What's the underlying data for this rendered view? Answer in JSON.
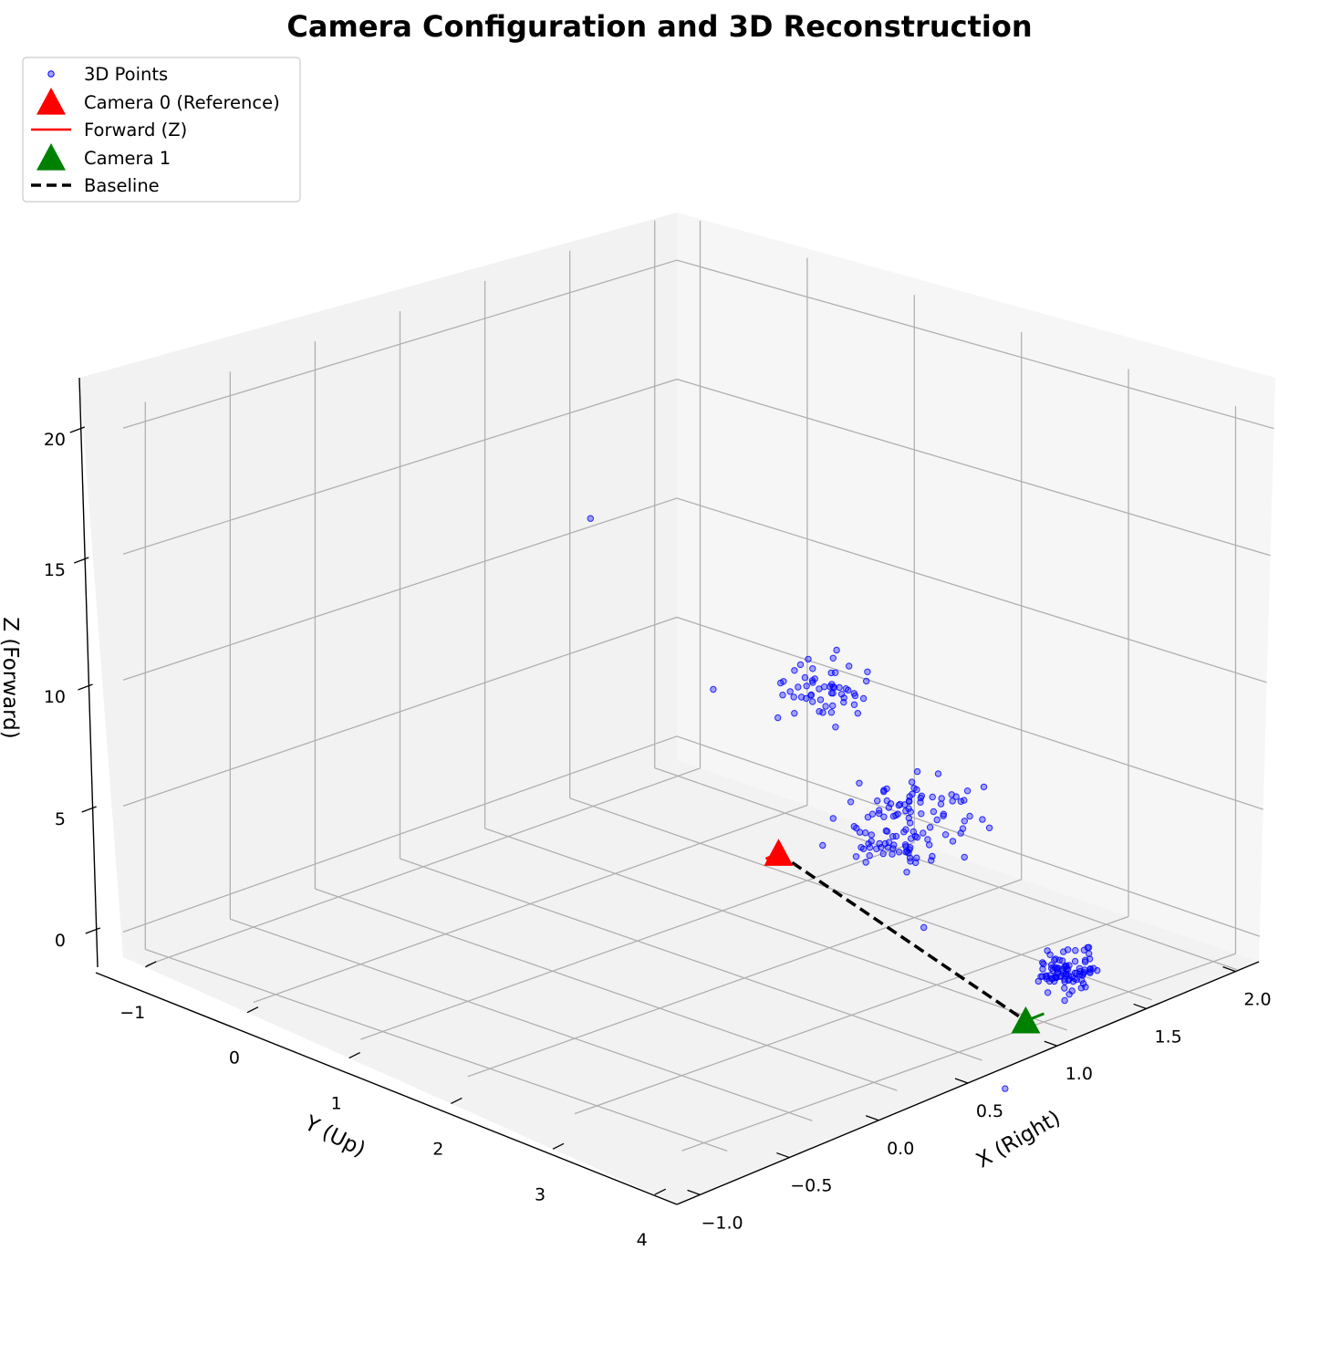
{
  "chart_data": {
    "type": "scatter",
    "title": "Camera Configuration and 3D Reconstruction",
    "xlabel": "X (Right)",
    "ylabel": "Y (Up)",
    "zlabel": "Z (Forward)",
    "xlim": [
      -1.2,
      2.0
    ],
    "ylim": [
      -1.2,
      4.5
    ],
    "zlim": [
      -1.0,
      22.0
    ],
    "x_ticks": [
      "−1.0",
      "−0.5",
      "0.0",
      "0.5",
      "1.0",
      "1.5",
      "2.0"
    ],
    "y_ticks": [
      "−1",
      "0",
      "1",
      "2",
      "3",
      "4"
    ],
    "z_ticks": [
      "0",
      "5",
      "10",
      "15",
      "20"
    ],
    "grid": true,
    "legend_position": "top-left",
    "legend": [
      {
        "label": "3D Points",
        "kind": "point",
        "color": "#0000ff"
      },
      {
        "label": "Camera 0 (Reference)",
        "kind": "triangle",
        "color": "#ff0000"
      },
      {
        "label": "Forward (Z)",
        "kind": "line",
        "color": "#ff0000"
      },
      {
        "label": "Camera 1",
        "kind": "triangle",
        "color": "#008000"
      },
      {
        "label": "Baseline",
        "kind": "dashed",
        "color": "#000000"
      }
    ],
    "cameras": [
      {
        "name": "Camera 0 (Reference)",
        "x": 0.0,
        "y": 0.0,
        "z": 0.0,
        "color": "#ff0000"
      },
      {
        "name": "Camera 1",
        "x": 2.0,
        "y": 1.2,
        "z": 0.0,
        "color": "#008000"
      }
    ],
    "baseline": {
      "from": [
        0.0,
        0.0,
        0.0
      ],
      "to": [
        2.0,
        1.2,
        0.0
      ]
    },
    "point_clusters": [
      {
        "label": "3D Points",
        "center": [
          1.9,
          0.6,
          1.0
        ],
        "spread": [
          0.1,
          0.25,
          0.6
        ],
        "count": 90
      },
      {
        "label": "3D Points",
        "center": [
          0.6,
          -0.3,
          2.8
        ],
        "spread": [
          0.25,
          0.45,
          1.2
        ],
        "count": 80
      },
      {
        "label": "3D Points",
        "center": [
          -0.2,
          -0.9,
          5.0
        ],
        "spread": [
          0.15,
          0.35,
          1.2
        ],
        "count": 55
      },
      {
        "label": "3D Points",
        "center": [
          0.5,
          -0.2,
          1.4
        ],
        "spread": [
          0.2,
          0.25,
          0.5
        ],
        "count": 35
      }
    ],
    "outlier_points": [
      [
        -0.5,
        1.0,
        14.2
      ],
      [
        1.6,
        1.5,
        3.3
      ],
      [
        2.1,
        1.6,
        -2.0
      ],
      [
        -1.0,
        -1.2,
        2.5
      ]
    ],
    "colors": {
      "points": "#0000ff",
      "camera0": "#ff0000",
      "camera1": "#008000",
      "baseline": "#000000"
    }
  }
}
